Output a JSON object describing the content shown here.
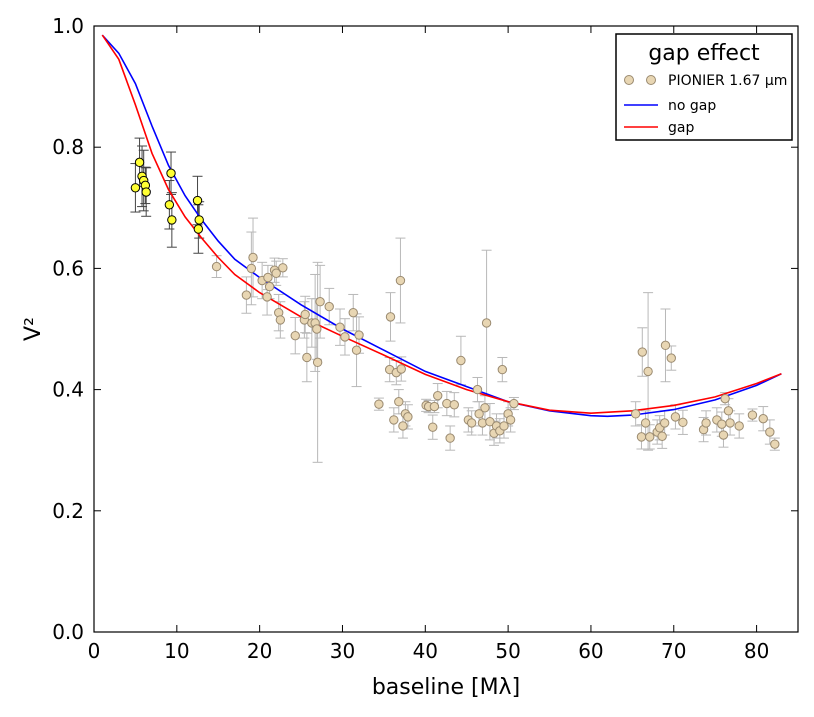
{
  "chart_data": {
    "type": "scatter",
    "xlabel": "baseline [Mλ]",
    "ylabel": "V²",
    "xlim": [
      0,
      85
    ],
    "ylim": [
      0,
      1.0
    ],
    "x_ticks": [
      0,
      10,
      20,
      30,
      40,
      50,
      60,
      70,
      80
    ],
    "y_ticks": [
      0.0,
      0.2,
      0.4,
      0.6,
      0.8,
      1.0
    ],
    "x_tick_labels": [
      "0",
      "10",
      "20",
      "30",
      "40",
      "50",
      "60",
      "70",
      "80"
    ],
    "y_tick_labels": [
      "0.0",
      "0.2",
      "0.4",
      "0.6",
      "0.8",
      "1.0"
    ],
    "grid": false,
    "legend": {
      "placement": "top-right",
      "title": "gap effect",
      "entries": [
        "PIONIER 1.67 μm",
        "no gap",
        "gap"
      ]
    },
    "colors": {
      "pionier_fill": "#e8d6b3",
      "pionier_edge": "#9a8a70",
      "pionier_err": "#b8b8b8",
      "highlight_fill": "#ffff33",
      "highlight_err": "#444444",
      "no_gap": "#0000ff",
      "gap": "#ff0000"
    },
    "series": [
      {
        "name": "PIONIER 1.67 μm",
        "kind": "scatter",
        "points": [
          [
            14.8,
            0.603,
            0.018
          ],
          [
            18.4,
            0.556,
            0.03
          ],
          [
            19.0,
            0.6,
            0.06
          ],
          [
            19.2,
            0.618,
            0.065
          ],
          [
            20.3,
            0.58,
            0.03
          ],
          [
            20.9,
            0.553,
            0.03
          ],
          [
            21.0,
            0.585,
            0.02
          ],
          [
            21.2,
            0.57,
            0.02
          ],
          [
            21.8,
            0.597,
            0.02
          ],
          [
            22.0,
            0.592,
            0.02
          ],
          [
            22.3,
            0.527,
            0.03
          ],
          [
            22.5,
            0.515,
            0.03
          ],
          [
            22.8,
            0.601,
            0.015
          ],
          [
            24.3,
            0.489,
            0.03
          ],
          [
            25.4,
            0.515,
            0.03
          ],
          [
            25.5,
            0.524,
            0.03
          ],
          [
            25.7,
            0.453,
            0.04
          ],
          [
            26.3,
            0.51,
            0.04
          ],
          [
            26.7,
            0.51,
            0.08
          ],
          [
            26.9,
            0.5,
            0.05
          ],
          [
            27.0,
            0.445,
            0.165
          ],
          [
            27.3,
            0.545,
            0.06
          ],
          [
            28.4,
            0.537,
            0.03
          ],
          [
            29.7,
            0.503,
            0.03
          ],
          [
            30.3,
            0.487,
            0.03
          ],
          [
            31.3,
            0.527,
            0.03
          ],
          [
            31.7,
            0.465,
            0.06
          ],
          [
            32.0,
            0.49,
            0.03
          ],
          [
            34.4,
            0.376,
            0.01
          ],
          [
            35.7,
            0.433,
            0.02
          ],
          [
            35.8,
            0.52,
            0.04
          ],
          [
            36.2,
            0.35,
            0.02
          ],
          [
            36.5,
            0.428,
            0.02
          ],
          [
            36.8,
            0.38,
            0.02
          ],
          [
            37.0,
            0.58,
            0.07
          ],
          [
            37.1,
            0.434,
            0.02
          ],
          [
            37.3,
            0.34,
            0.02
          ],
          [
            37.6,
            0.36,
            0.02
          ],
          [
            37.9,
            0.355,
            0.02
          ],
          [
            40.1,
            0.374,
            0.01
          ],
          [
            40.4,
            0.372,
            0.01
          ],
          [
            40.9,
            0.338,
            0.02
          ],
          [
            41.1,
            0.372,
            0.01
          ],
          [
            41.5,
            0.39,
            0.02
          ],
          [
            42.6,
            0.377,
            0.02
          ],
          [
            43.0,
            0.32,
            0.02
          ],
          [
            43.5,
            0.375,
            0.02
          ],
          [
            44.3,
            0.448,
            0.04
          ],
          [
            45.2,
            0.35,
            0.02
          ],
          [
            45.6,
            0.345,
            0.02
          ],
          [
            46.3,
            0.4,
            0.02
          ],
          [
            46.5,
            0.36,
            0.02
          ],
          [
            46.9,
            0.345,
            0.02
          ],
          [
            47.2,
            0.37,
            0.02
          ],
          [
            47.4,
            0.51,
            0.12
          ],
          [
            47.8,
            0.347,
            0.03
          ],
          [
            48.3,
            0.328,
            0.02
          ],
          [
            48.6,
            0.34,
            0.02
          ],
          [
            49.0,
            0.332,
            0.02
          ],
          [
            49.3,
            0.433,
            0.02
          ],
          [
            49.5,
            0.34,
            0.02
          ],
          [
            50.0,
            0.36,
            0.02
          ],
          [
            50.3,
            0.35,
            0.02
          ],
          [
            50.7,
            0.377,
            0.01
          ],
          [
            65.4,
            0.36,
            0.02
          ],
          [
            66.1,
            0.322,
            0.02
          ],
          [
            66.2,
            0.462,
            0.04
          ],
          [
            66.6,
            0.345,
            0.02
          ],
          [
            66.9,
            0.43,
            0.13
          ],
          [
            67.1,
            0.322,
            0.02
          ],
          [
            68.0,
            0.33,
            0.02
          ],
          [
            68.3,
            0.337,
            0.02
          ],
          [
            68.6,
            0.323,
            0.02
          ],
          [
            68.9,
            0.345,
            0.02
          ],
          [
            69.0,
            0.473,
            0.06
          ],
          [
            69.7,
            0.452,
            0.02
          ],
          [
            70.2,
            0.355,
            0.02
          ],
          [
            71.1,
            0.346,
            0.02
          ],
          [
            73.6,
            0.334,
            0.02
          ],
          [
            73.9,
            0.345,
            0.02
          ],
          [
            75.2,
            0.35,
            0.02
          ],
          [
            75.8,
            0.343,
            0.02
          ],
          [
            76.0,
            0.325,
            0.02
          ],
          [
            76.2,
            0.385,
            0.01
          ],
          [
            76.6,
            0.365,
            0.02
          ],
          [
            76.8,
            0.345,
            0.02
          ],
          [
            77.9,
            0.34,
            0.02
          ],
          [
            79.5,
            0.358,
            0.01
          ],
          [
            80.8,
            0.352,
            0.02
          ],
          [
            81.6,
            0.33,
            0.02
          ],
          [
            82.2,
            0.31,
            0.01
          ]
        ]
      },
      {
        "name": "",
        "kind": "scatter-highlight",
        "points": [
          [
            5.0,
            0.733,
            0.04
          ],
          [
            5.5,
            0.775,
            0.04
          ],
          [
            5.8,
            0.752,
            0.05
          ],
          [
            6.0,
            0.745,
            0.05
          ],
          [
            6.2,
            0.737,
            0.03
          ],
          [
            6.3,
            0.726,
            0.04
          ],
          [
            9.1,
            0.705,
            0.04
          ],
          [
            9.3,
            0.757,
            0.035
          ],
          [
            9.4,
            0.68,
            0.045
          ],
          [
            12.5,
            0.712,
            0.04
          ],
          [
            12.6,
            0.665,
            0.04
          ],
          [
            12.7,
            0.68,
            0.03
          ]
        ]
      },
      {
        "name": "no gap",
        "kind": "line",
        "points": [
          [
            1,
            0.985
          ],
          [
            3,
            0.955
          ],
          [
            5,
            0.905
          ],
          [
            7,
            0.835
          ],
          [
            9,
            0.77
          ],
          [
            11,
            0.72
          ],
          [
            13,
            0.68
          ],
          [
            15,
            0.645
          ],
          [
            17,
            0.615
          ],
          [
            20,
            0.585
          ],
          [
            25,
            0.54
          ],
          [
            30,
            0.5
          ],
          [
            35,
            0.465
          ],
          [
            40,
            0.43
          ],
          [
            45,
            0.405
          ],
          [
            50,
            0.38
          ],
          [
            55,
            0.365
          ],
          [
            60,
            0.357
          ],
          [
            62,
            0.356
          ],
          [
            65,
            0.358
          ],
          [
            70,
            0.367
          ],
          [
            75,
            0.383
          ],
          [
            80,
            0.407
          ],
          [
            83,
            0.426
          ]
        ]
      },
      {
        "name": "gap",
        "kind": "line",
        "points": [
          [
            1,
            0.985
          ],
          [
            3,
            0.945
          ],
          [
            5,
            0.87
          ],
          [
            7,
            0.79
          ],
          [
            9,
            0.73
          ],
          [
            11,
            0.685
          ],
          [
            13,
            0.65
          ],
          [
            15,
            0.618
          ],
          [
            17,
            0.59
          ],
          [
            20,
            0.56
          ],
          [
            25,
            0.52
          ],
          [
            30,
            0.488
          ],
          [
            35,
            0.457
          ],
          [
            40,
            0.425
          ],
          [
            45,
            0.4
          ],
          [
            50,
            0.38
          ],
          [
            55,
            0.366
          ],
          [
            60,
            0.361
          ],
          [
            65,
            0.365
          ],
          [
            70,
            0.374
          ],
          [
            75,
            0.388
          ],
          [
            80,
            0.41
          ],
          [
            83,
            0.426
          ]
        ]
      }
    ]
  }
}
